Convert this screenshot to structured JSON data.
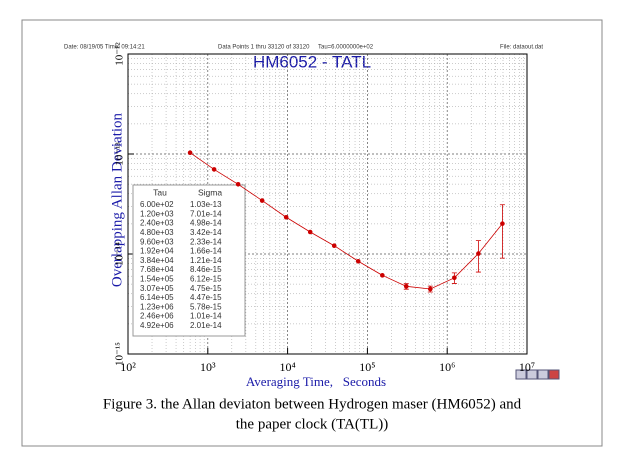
{
  "chart_data": {
    "type": "line",
    "header_info": [
      "Date: 08/19/05  Time: 09:14:21",
      "Data Points 1 thru 33120 of 33120",
      "Tau=6.0000000e+02",
      "File: dataout.dat"
    ],
    "title": "HM6052 - TATL",
    "x_label": "Averaging Time,   Seconds",
    "y_label": "Overlapping Allan Deviation",
    "log_x": true,
    "log_y": true,
    "grid": true,
    "color": "#cc0000",
    "x": [
      600,
      1200,
      2400,
      4800,
      9600,
      19200,
      38400,
      76800,
      154000,
      307000,
      614000,
      1230000,
      2460000,
      4920000
    ],
    "x_labels": [
      "6.00e+02",
      "1.20e+03",
      "2.40e+03",
      "4.80e+03",
      "9.60e+03",
      "1.92e+04",
      "3.84e+04",
      "7.68e+04",
      "1.54e+05",
      "3.07e+05",
      "6.14e+05",
      "1.23e+06",
      "2.46e+06",
      "4.92e+06"
    ],
    "values": [
      1.03e-13,
      7.01e-14,
      4.98e-14,
      3.42e-14,
      2.33e-14,
      1.66e-14,
      1.21e-14,
      8.46e-15,
      6.12e-15,
      4.75e-15,
      4.47e-15,
      5.78e-15,
      1.01e-14,
      2.01e-14
    ],
    "value_labels": [
      "1.03e-13",
      "7.01e-14",
      "4.98e-14",
      "3.42e-14",
      "2.33e-14",
      "1.66e-14",
      "1.21e-14",
      "8.46e-15",
      "6.12e-15",
      "4.75e-15",
      "4.47e-15",
      "5.78e-15",
      "1.01e-14",
      "2.01e-14"
    ],
    "errors": [
      null,
      null,
      null,
      null,
      null,
      null,
      null,
      null,
      null,
      3e-16,
      3e-16,
      7e-16,
      3.5e-15,
      1.1e-14
    ],
    "table_header": [
      "Tau",
      "Sigma"
    ],
    "xlim": [
      100,
      10000000
    ],
    "ylim": [
      1e-15,
      1e-12
    ],
    "xticks": [
      {
        "value": 100,
        "label": "10²"
      },
      {
        "value": 1000,
        "label": "10³"
      },
      {
        "value": 10000,
        "label": "10⁴"
      },
      {
        "value": 100000,
        "label": "10⁵"
      },
      {
        "value": 1000000,
        "label": "10⁶"
      },
      {
        "value": 10000000,
        "label": "10⁷"
      }
    ],
    "yticks": [
      {
        "value": 1e-15,
        "label": "10⁻¹⁵"
      },
      {
        "value": 1e-14,
        "label": "10⁻¹⁴"
      },
      {
        "value": 1e-13,
        "label": "10⁻¹³"
      },
      {
        "value": 1e-12,
        "label": "10⁻¹²"
      }
    ]
  },
  "caption": [
    "Figure 3. the Allan deviaton between Hydrogen maser (HM6052) and",
    "the paper clock (TA(TL))"
  ]
}
